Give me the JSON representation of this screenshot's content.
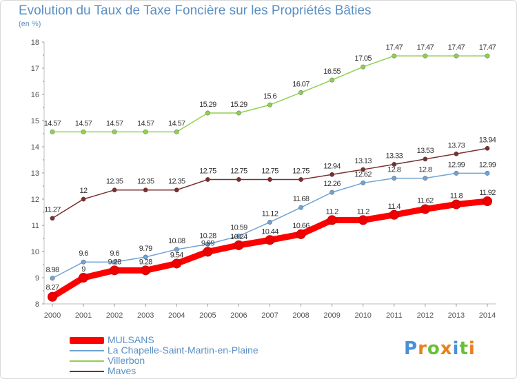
{
  "title": "Evolution du Taux de Taxe Foncière sur les Propriétés Bâties",
  "unit": "(en %)",
  "logo": {
    "letters": [
      "P",
      "r",
      "o",
      "x",
      "i",
      "t",
      "i"
    ],
    "colors": [
      "#4a90d9",
      "#e8801f",
      "#6abf3a",
      "#e8801f",
      "#4a90d9",
      "#6abf3a",
      "#e8801f"
    ]
  },
  "chart_data": {
    "type": "line",
    "title": "Evolution du Taux de Taxe Foncière sur les Propriétés Bâties",
    "ylabel": "(en %)",
    "xlabel": "",
    "x": [
      "2000",
      "2001",
      "2002",
      "2003",
      "2004",
      "2005",
      "2006",
      "2007",
      "2008",
      "2009",
      "2010",
      "2011",
      "2012",
      "2013",
      "2014"
    ],
    "ylim": [
      8,
      18
    ],
    "yticks": [
      "8",
      "9",
      "10",
      "11",
      "12",
      "13",
      "14",
      "15",
      "16",
      "17",
      "18"
    ],
    "grid": false,
    "legend_position": "bottom-left",
    "series": [
      {
        "name": "MULSANS",
        "color": "#ff0000",
        "values": [
          8.27,
          9,
          9.28,
          9.28,
          9.54,
          9.99,
          10.24,
          10.44,
          10.66,
          11.2,
          11.2,
          11.4,
          11.62,
          11.8,
          11.92
        ],
        "labels": [
          "8.27",
          "9",
          "9.28",
          "9.28",
          "9.54",
          "9.99",
          "10.24",
          "10.44",
          "10.66",
          "11.2",
          "11.2",
          "11.4",
          "11.62",
          "11.8",
          "11.92"
        ]
      },
      {
        "name": "La Chapelle-Saint-Martin-en-Plaine",
        "color": "#6fa3d4",
        "values": [
          8.98,
          9.6,
          9.6,
          9.79,
          10.08,
          10.28,
          10.59,
          11.12,
          11.68,
          12.26,
          12.62,
          12.8,
          12.8,
          12.99,
          12.99
        ],
        "labels": [
          "8.98",
          "9.6",
          "9.6",
          "9.79",
          "10.08",
          "10.28",
          "10.59",
          "11.12",
          "11.68",
          "12.26",
          "12.62",
          "12.8",
          "12.8",
          "12.99",
          "12.99"
        ]
      },
      {
        "name": "Villerbon",
        "color": "#8fd14f",
        "values": [
          14.57,
          14.57,
          14.57,
          14.57,
          14.57,
          15.29,
          15.29,
          15.6,
          16.07,
          16.55,
          17.05,
          17.47,
          17.47,
          17.47,
          17.47
        ],
        "labels": [
          "14.57",
          "14.57",
          "14.57",
          "14.57",
          "14.57",
          "15.29",
          "15.29",
          "15.6",
          "16.07",
          "16.55",
          "17.05",
          "17.47",
          "17.47",
          "17.47",
          "17.47"
        ]
      },
      {
        "name": "Maves",
        "color": "#7a2e2e",
        "values": [
          11.27,
          12,
          12.35,
          12.35,
          12.35,
          12.75,
          12.75,
          12.75,
          12.75,
          12.94,
          13.13,
          13.33,
          13.53,
          13.73,
          13.94
        ],
        "labels": [
          "11.27",
          "12",
          "12.35",
          "12.35",
          "12.35",
          "12.75",
          "12.75",
          "12.75",
          "12.75",
          "12.94",
          "13.13",
          "13.33",
          "13.53",
          "13.73",
          "13.94"
        ]
      }
    ]
  }
}
